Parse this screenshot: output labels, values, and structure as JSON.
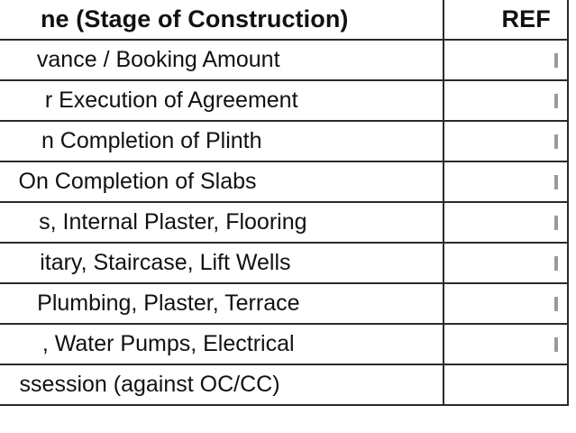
{
  "table": {
    "headers": {
      "stage": "ne (Stage of Construction)",
      "refund": "REF"
    },
    "rows": [
      {
        "stage": "vance / Booking Amount"
      },
      {
        "stage": "r Execution of Agreement"
      },
      {
        "stage": "n Completion of Plinth"
      },
      {
        "stage": "On Completion of Slabs"
      },
      {
        "stage": "s, Internal Plaster, Flooring"
      },
      {
        "stage": "itary, Staircase, Lift Wells"
      },
      {
        "stage": "Plumbing, Plaster, Terrace"
      },
      {
        "stage": ", Water Pumps, Electrical"
      },
      {
        "stage": "ssession (against OC/CC)"
      }
    ]
  }
}
